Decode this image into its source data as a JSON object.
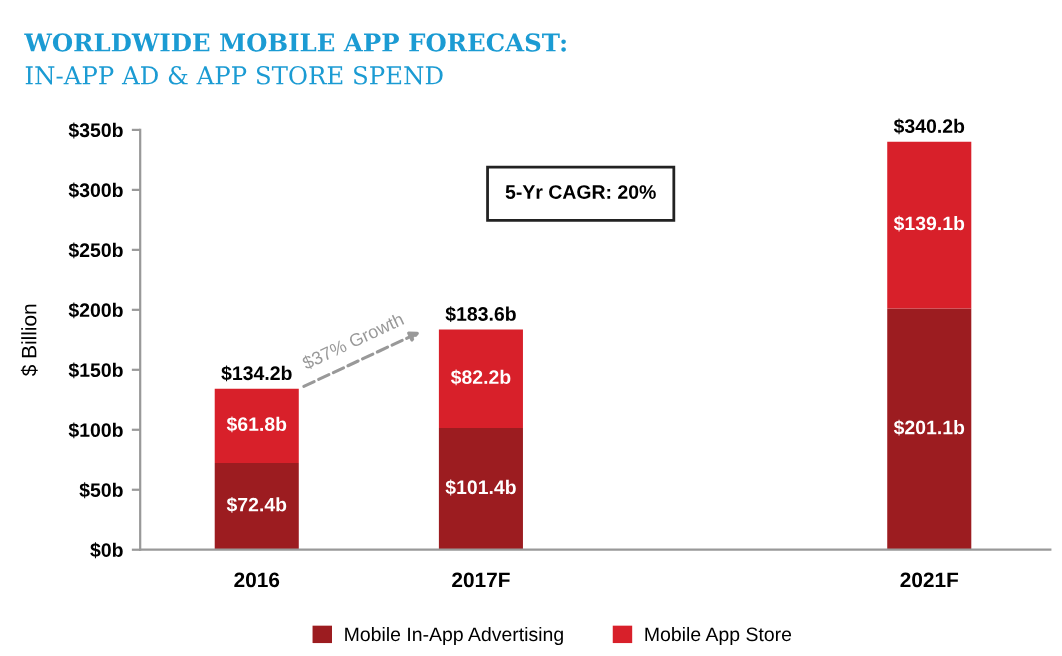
{
  "chart_data": {
    "type": "bar",
    "stacked": true,
    "title": "WORLDWIDE MOBILE APP FORECAST:",
    "subtitle": "IN-APP AD & APP STORE SPEND",
    "ylabel": "$ Billion",
    "categories": [
      "2016",
      "2017F",
      null,
      "2021F"
    ],
    "series": [
      {
        "name": "Mobile In-App Advertising",
        "color": "#9c1c20",
        "values": [
          72.4,
          101.4,
          null,
          201.1
        ],
        "value_labels": [
          "$72.4b",
          "$101.4b",
          null,
          "$201.1b"
        ]
      },
      {
        "name": "Mobile App Store",
        "color": "#d8202a",
        "values": [
          61.8,
          82.2,
          null,
          139.1
        ],
        "value_labels": [
          "$61.8b",
          "$82.2b",
          null,
          "$139.1b"
        ]
      }
    ],
    "totals": [
      "$134.2b",
      "$183.6b",
      null,
      "$340.2b"
    ],
    "ylim": [
      0,
      350
    ],
    "yticks": [
      {
        "value": 0,
        "label": "$0b"
      },
      {
        "value": 50,
        "label": "$50b"
      },
      {
        "value": 100,
        "label": "$100b"
      },
      {
        "value": 150,
        "label": "$150b"
      },
      {
        "value": 200,
        "label": "$200b"
      },
      {
        "value": 250,
        "label": "$250b"
      },
      {
        "value": 300,
        "label": "$300b"
      },
      {
        "value": 350,
        "label": "$350b"
      }
    ],
    "annotations": [
      "$37% Growth",
      "5-Yr CAGR: 20%"
    ],
    "grid": false,
    "legend": "bottom"
  }
}
